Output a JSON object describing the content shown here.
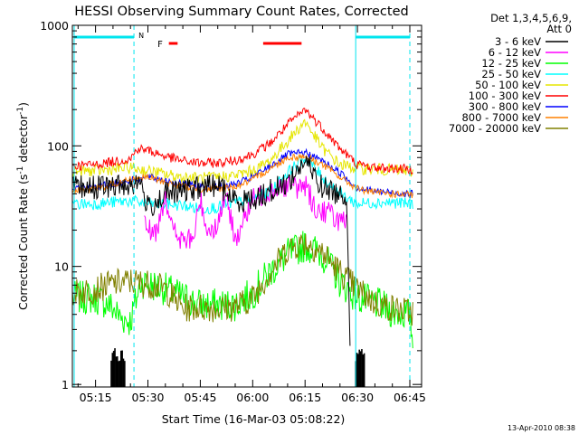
{
  "chart_data": {
    "type": "line",
    "title": "HESSI Observing Summary Count Rates, Corrected",
    "xlabel": "Start Time (16-Mar-03 05:08:22)",
    "ylabel_main": "Corrected Count Rate (s",
    "ylabel_sup1": "-1",
    "ylabel_mid": " detector",
    "ylabel_sup2": "-1",
    "ylabel_end": ")",
    "ylabel_full": "Corrected Count Rate (s^-1 detector^-1)",
    "yscale": "log",
    "ylim": [
      1,
      1000
    ],
    "xlim": [
      "05:08:22",
      "06:48:22"
    ],
    "x_ticks": [
      "05:15",
      "05:30",
      "05:45",
      "06:00",
      "06:15",
      "06:30",
      "06:45"
    ],
    "x_tick_minutes": [
      315,
      330,
      345,
      360,
      375,
      390,
      405
    ],
    "y_ticks": [
      "1",
      "10",
      "100",
      "1000"
    ],
    "y_tick_values": [
      1,
      10,
      100,
      1000
    ],
    "legend_header": [
      "Det 1,3,4,5,6,9,",
      "Att 0"
    ],
    "legend_position": "right",
    "footer": "13-Apr-2010 08:38",
    "annotations": {
      "night": "N",
      "flare": "F"
    },
    "colors": {
      "frame": "#000000",
      "cyan": "#00e5ee",
      "red": "#ff0000"
    },
    "series": [
      {
        "name": "3 - 6 keV",
        "color": "#000000",
        "x": [
          "05:08:22",
          "05:20",
          "05:25",
          "05:28",
          "05:30",
          "05:35",
          "05:40",
          "05:45",
          "05:50",
          "05:55",
          "06:00",
          "06:05",
          "06:10",
          "06:15",
          "06:20",
          "06:25",
          "06:27",
          "06:28"
        ],
        "values": [
          45,
          46,
          48,
          50,
          30,
          40,
          42,
          45,
          48,
          35,
          36,
          42,
          50,
          75,
          45,
          40,
          38,
          1.5
        ]
      },
      {
        "name": "6 - 12 keV",
        "color": "#ff00ff",
        "x": [
          "05:29",
          "05:32",
          "05:35",
          "05:37",
          "05:40",
          "05:43",
          "05:45",
          "05:47",
          "05:50",
          "05:52",
          "05:55",
          "06:00",
          "06:05",
          "06:10",
          "06:13",
          "06:15",
          "06:18",
          "06:22",
          "06:25",
          "06:27"
        ],
        "values": [
          22,
          18,
          40,
          20,
          16,
          17,
          36,
          20,
          22,
          40,
          17,
          35,
          44,
          47,
          45,
          48,
          30,
          28,
          24,
          22
        ]
      },
      {
        "name": "12 - 25 keV",
        "color": "#00ff00",
        "x": [
          "05:08:22",
          "05:15",
          "05:18",
          "05:20",
          "05:22",
          "05:25",
          "05:28",
          "05:35",
          "05:45",
          "05:55",
          "06:00",
          "06:05",
          "06:10",
          "06:15",
          "06:20",
          "06:25",
          "06:30",
          "06:35",
          "06:40",
          "06:45",
          "06:46"
        ],
        "values": [
          5.5,
          5.5,
          5.0,
          4.5,
          3.8,
          3.5,
          7.5,
          6.5,
          4.8,
          4.8,
          6,
          9,
          12.5,
          15,
          12.5,
          7.5,
          5.5,
          5,
          4.2,
          4.0,
          2.2
        ]
      },
      {
        "name": "25 - 50 keV",
        "color": "#00ffff",
        "x": [
          "05:08:22",
          "05:15",
          "05:20",
          "05:25",
          "05:30",
          "05:35",
          "05:40",
          "05:45",
          "05:50",
          "05:55",
          "06:00",
          "06:05",
          "06:10",
          "06:15",
          "06:20",
          "06:25",
          "06:30",
          "06:35",
          "06:40",
          "06:45",
          "06:46"
        ],
        "values": [
          33,
          33,
          34,
          35,
          33,
          33,
          32,
          30,
          31,
          34,
          36,
          42,
          60,
          80,
          55,
          40,
          33,
          34,
          34,
          33,
          33
        ]
      },
      {
        "name": "50 - 100 keV",
        "color": "#e6e600",
        "x": [
          "05:08:22",
          "05:15",
          "05:20",
          "05:25",
          "05:30",
          "05:35",
          "05:40",
          "05:45",
          "05:50",
          "05:55",
          "06:00",
          "06:05",
          "06:10",
          "06:15",
          "06:20",
          "06:25",
          "06:30",
          "06:35",
          "06:40",
          "06:45",
          "06:46"
        ],
        "values": [
          62,
          62,
          64,
          66,
          62,
          58,
          55,
          54,
          55,
          57,
          62,
          75,
          110,
          160,
          95,
          70,
          65,
          64,
          63,
          62,
          62
        ]
      },
      {
        "name": "100 - 300 keV",
        "color": "#ff0000",
        "x": [
          "05:08:22",
          "05:15",
          "05:20",
          "05:25",
          "05:27",
          "05:30",
          "05:35",
          "05:40",
          "05:45",
          "05:50",
          "05:55",
          "06:00",
          "06:05",
          "06:10",
          "06:15",
          "06:20",
          "06:25",
          "06:30",
          "06:35",
          "06:40",
          "06:45",
          "06:46"
        ],
        "values": [
          68,
          70,
          74,
          78,
          95,
          92,
          82,
          75,
          72,
          72,
          76,
          85,
          105,
          150,
          200,
          140,
          95,
          70,
          66,
          65,
          64,
          64
        ]
      },
      {
        "name": "300 - 800 keV",
        "color": "#0000ff",
        "x": [
          "05:08:22",
          "05:15",
          "05:20",
          "05:25",
          "05:30",
          "05:35",
          "05:40",
          "05:45",
          "05:50",
          "05:55",
          "06:00",
          "06:05",
          "06:10",
          "06:15",
          "06:20",
          "06:25",
          "06:30",
          "06:35",
          "06:40",
          "06:45",
          "06:46"
        ],
        "values": [
          45,
          46,
          48,
          52,
          55,
          52,
          48,
          46,
          46,
          48,
          55,
          68,
          85,
          88,
          75,
          60,
          45,
          42,
          41,
          40,
          40
        ]
      },
      {
        "name": "800 - 7000 keV",
        "color": "#ff8000",
        "x": [
          "05:08:22",
          "05:15",
          "05:20",
          "05:25",
          "05:30",
          "05:35",
          "05:40",
          "05:45",
          "05:50",
          "05:55",
          "06:00",
          "06:05",
          "06:10",
          "06:15",
          "06:20",
          "06:25",
          "06:30",
          "06:35",
          "06:40",
          "06:45",
          "06:46"
        ],
        "values": [
          42,
          44,
          48,
          53,
          55,
          50,
          46,
          44,
          44,
          46,
          52,
          65,
          80,
          82,
          70,
          55,
          44,
          41,
          40,
          39,
          39
        ]
      },
      {
        "name": "7000 - 20000 keV",
        "color": "#808000",
        "x": [
          "05:08:22",
          "05:15",
          "05:20",
          "05:25",
          "05:30",
          "05:35",
          "05:40",
          "05:45",
          "05:50",
          "05:55",
          "06:00",
          "06:05",
          "06:10",
          "06:15",
          "06:20",
          "06:25",
          "06:30",
          "06:35",
          "06:40",
          "06:45",
          "06:46"
        ],
        "values": [
          6,
          6.5,
          7.2,
          7.5,
          7.2,
          6.5,
          4.5,
          4.6,
          4.5,
          4.6,
          5.5,
          9,
          14,
          16,
          13,
          9,
          6.5,
          5,
          4.5,
          4.2,
          4.2
        ]
      }
    ]
  }
}
